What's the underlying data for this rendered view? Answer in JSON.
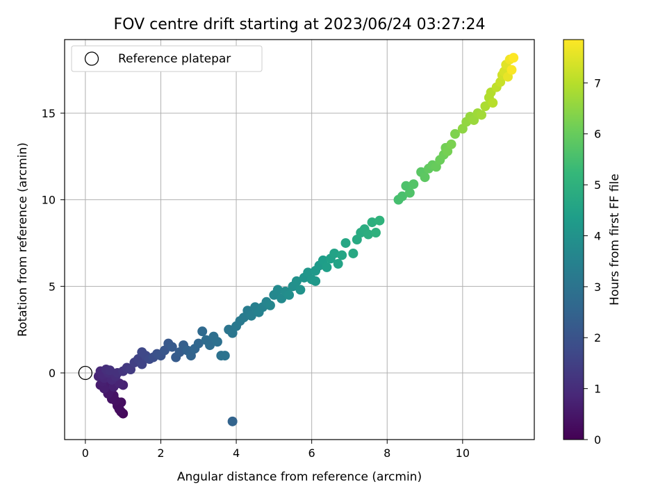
{
  "chart_data": {
    "type": "scatter",
    "title": "FOV centre drift starting at 2023/06/24 03:27:24",
    "xlabel": "Angular distance from reference (arcmin)",
    "ylabel": "Rotation from reference (arcmin)",
    "xlim": [
      -0.55,
      11.9
    ],
    "ylim": [
      -3.85,
      19.25
    ],
    "xticks": [
      0,
      2,
      4,
      6,
      8,
      10
    ],
    "yticks": [
      0,
      5,
      10,
      15
    ],
    "grid": true,
    "legend": {
      "placement": "upper-left",
      "entries": [
        {
          "label": "Reference platepar",
          "marker": "open-circle"
        }
      ]
    },
    "reference_point": {
      "x": 0,
      "y": 0
    },
    "colorbar": {
      "label": "Hours from first FF file",
      "range": [
        0,
        7.85
      ],
      "ticks": [
        0,
        1,
        2,
        3,
        4,
        5,
        6,
        7
      ],
      "colormap": "viridis"
    },
    "points": [
      {
        "x": 0.35,
        "y": -0.2,
        "c": 0.8
      },
      {
        "x": 0.4,
        "y": 0.1,
        "c": 0.9
      },
      {
        "x": 0.45,
        "y": -0.5,
        "c": 0.7
      },
      {
        "x": 0.5,
        "y": -0.3,
        "c": 0.85
      },
      {
        "x": 0.55,
        "y": -0.7,
        "c": 0.6
      },
      {
        "x": 0.6,
        "y": 0.0,
        "c": 1.0
      },
      {
        "x": 0.65,
        "y": -1.0,
        "c": 0.5
      },
      {
        "x": 0.7,
        "y": -0.4,
        "c": 0.9
      },
      {
        "x": 0.75,
        "y": -1.3,
        "c": 0.4
      },
      {
        "x": 0.8,
        "y": -1.6,
        "c": 0.35
      },
      {
        "x": 0.85,
        "y": -1.9,
        "c": 0.3
      },
      {
        "x": 0.9,
        "y": -2.1,
        "c": 0.25
      },
      {
        "x": 0.95,
        "y": -2.25,
        "c": 0.2
      },
      {
        "x": 1.0,
        "y": -2.35,
        "c": 0.15
      },
      {
        "x": 0.7,
        "y": -1.5,
        "c": 0.4
      },
      {
        "x": 0.6,
        "y": -1.2,
        "c": 0.5
      },
      {
        "x": 0.5,
        "y": -0.9,
        "c": 0.65
      },
      {
        "x": 0.45,
        "y": -0.1,
        "c": 0.9
      },
      {
        "x": 0.55,
        "y": 0.2,
        "c": 1.05
      },
      {
        "x": 0.65,
        "y": 0.15,
        "c": 1.1
      },
      {
        "x": 0.8,
        "y": -0.2,
        "c": 1.0
      },
      {
        "x": 0.9,
        "y": -0.6,
        "c": 0.8
      },
      {
        "x": 1.0,
        "y": -0.7,
        "c": 0.75
      },
      {
        "x": 0.95,
        "y": -1.7,
        "c": 0.3
      },
      {
        "x": 0.75,
        "y": -0.8,
        "c": 0.7
      },
      {
        "x": 0.4,
        "y": -0.7,
        "c": 0.6
      },
      {
        "x": 0.85,
        "y": 0.0,
        "c": 1.1
      },
      {
        "x": 1.0,
        "y": 0.1,
        "c": 1.2
      },
      {
        "x": 1.1,
        "y": 0.3,
        "c": 1.3
      },
      {
        "x": 1.2,
        "y": 0.2,
        "c": 1.35
      },
      {
        "x": 1.3,
        "y": 0.6,
        "c": 1.45
      },
      {
        "x": 1.4,
        "y": 0.8,
        "c": 1.55
      },
      {
        "x": 1.5,
        "y": 0.5,
        "c": 1.6
      },
      {
        "x": 1.6,
        "y": 1.0,
        "c": 1.7
      },
      {
        "x": 1.7,
        "y": 0.8,
        "c": 1.75
      },
      {
        "x": 1.5,
        "y": 1.2,
        "c": 1.7
      },
      {
        "x": 1.8,
        "y": 0.9,
        "c": 1.85
      },
      {
        "x": 1.9,
        "y": 1.1,
        "c": 1.95
      },
      {
        "x": 2.0,
        "y": 1.0,
        "c": 2.0
      },
      {
        "x": 2.1,
        "y": 1.3,
        "c": 2.1
      },
      {
        "x": 2.2,
        "y": 1.7,
        "c": 2.15
      },
      {
        "x": 2.3,
        "y": 1.5,
        "c": 2.2
      },
      {
        "x": 2.4,
        "y": 0.9,
        "c": 2.25
      },
      {
        "x": 2.5,
        "y": 1.2,
        "c": 2.3
      },
      {
        "x": 2.6,
        "y": 1.6,
        "c": 2.35
      },
      {
        "x": 2.7,
        "y": 1.3,
        "c": 2.45
      },
      {
        "x": 2.8,
        "y": 1.0,
        "c": 2.5
      },
      {
        "x": 2.9,
        "y": 1.4,
        "c": 2.55
      },
      {
        "x": 3.0,
        "y": 1.7,
        "c": 2.6
      },
      {
        "x": 3.1,
        "y": 2.4,
        "c": 2.7
      },
      {
        "x": 3.2,
        "y": 1.9,
        "c": 2.75
      },
      {
        "x": 3.3,
        "y": 1.6,
        "c": 2.8
      },
      {
        "x": 3.4,
        "y": 2.1,
        "c": 2.85
      },
      {
        "x": 3.5,
        "y": 1.8,
        "c": 2.9
      },
      {
        "x": 3.6,
        "y": 1.0,
        "c": 2.95
      },
      {
        "x": 3.7,
        "y": 1.0,
        "c": 3.0
      },
      {
        "x": 3.8,
        "y": 2.5,
        "c": 3.05
      },
      {
        "x": 3.9,
        "y": 2.3,
        "c": 3.1
      },
      {
        "x": 3.9,
        "y": -2.8,
        "c": 2.5
      },
      {
        "x": 4.0,
        "y": 2.7,
        "c": 3.15
      },
      {
        "x": 4.1,
        "y": 3.0,
        "c": 3.2
      },
      {
        "x": 4.2,
        "y": 3.2,
        "c": 3.25
      },
      {
        "x": 4.3,
        "y": 3.6,
        "c": 3.3
      },
      {
        "x": 4.4,
        "y": 3.3,
        "c": 3.35
      },
      {
        "x": 4.5,
        "y": 3.8,
        "c": 3.4
      },
      {
        "x": 4.6,
        "y": 3.5,
        "c": 3.45
      },
      {
        "x": 4.7,
        "y": 3.8,
        "c": 3.5
      },
      {
        "x": 4.8,
        "y": 4.1,
        "c": 3.55
      },
      {
        "x": 4.9,
        "y": 3.9,
        "c": 3.6
      },
      {
        "x": 5.0,
        "y": 4.5,
        "c": 3.65
      },
      {
        "x": 5.1,
        "y": 4.8,
        "c": 3.7
      },
      {
        "x": 5.2,
        "y": 4.3,
        "c": 3.75
      },
      {
        "x": 5.3,
        "y": 4.7,
        "c": 3.8
      },
      {
        "x": 5.4,
        "y": 4.5,
        "c": 3.85
      },
      {
        "x": 5.5,
        "y": 5.0,
        "c": 3.9
      },
      {
        "x": 5.6,
        "y": 5.3,
        "c": 3.95
      },
      {
        "x": 5.7,
        "y": 4.8,
        "c": 4.0
      },
      {
        "x": 5.8,
        "y": 5.5,
        "c": 4.05
      },
      {
        "x": 5.9,
        "y": 5.8,
        "c": 4.1
      },
      {
        "x": 6.0,
        "y": 5.4,
        "c": 4.15
      },
      {
        "x": 6.1,
        "y": 5.9,
        "c": 4.2
      },
      {
        "x": 6.2,
        "y": 6.2,
        "c": 4.25
      },
      {
        "x": 6.1,
        "y": 5.3,
        "c": 4.2
      },
      {
        "x": 6.3,
        "y": 6.5,
        "c": 4.35
      },
      {
        "x": 6.4,
        "y": 6.1,
        "c": 4.4
      },
      {
        "x": 6.5,
        "y": 6.6,
        "c": 4.45
      },
      {
        "x": 6.6,
        "y": 6.9,
        "c": 4.5
      },
      {
        "x": 6.7,
        "y": 6.3,
        "c": 4.55
      },
      {
        "x": 6.8,
        "y": 6.8,
        "c": 4.6
      },
      {
        "x": 6.9,
        "y": 7.5,
        "c": 4.65
      },
      {
        "x": 7.1,
        "y": 6.9,
        "c": 4.7
      },
      {
        "x": 7.2,
        "y": 7.7,
        "c": 4.75
      },
      {
        "x": 7.3,
        "y": 8.1,
        "c": 4.8
      },
      {
        "x": 7.4,
        "y": 8.3,
        "c": 4.85
      },
      {
        "x": 7.5,
        "y": 8.0,
        "c": 4.9
      },
      {
        "x": 7.6,
        "y": 8.7,
        "c": 4.95
      },
      {
        "x": 7.7,
        "y": 8.1,
        "c": 5.0
      },
      {
        "x": 7.8,
        "y": 8.8,
        "c": 5.05
      },
      {
        "x": 8.3,
        "y": 10.0,
        "c": 5.5
      },
      {
        "x": 8.4,
        "y": 10.2,
        "c": 5.55
      },
      {
        "x": 8.5,
        "y": 10.8,
        "c": 5.6
      },
      {
        "x": 8.6,
        "y": 10.4,
        "c": 5.65
      },
      {
        "x": 8.7,
        "y": 10.9,
        "c": 5.7
      },
      {
        "x": 8.9,
        "y": 11.6,
        "c": 5.8
      },
      {
        "x": 9.0,
        "y": 11.3,
        "c": 5.85
      },
      {
        "x": 9.1,
        "y": 11.8,
        "c": 5.9
      },
      {
        "x": 9.2,
        "y": 12.0,
        "c": 5.95
      },
      {
        "x": 9.3,
        "y": 11.9,
        "c": 6.0
      },
      {
        "x": 9.4,
        "y": 12.3,
        "c": 6.05
      },
      {
        "x": 9.5,
        "y": 12.6,
        "c": 6.1
      },
      {
        "x": 9.55,
        "y": 13.0,
        "c": 6.15
      },
      {
        "x": 9.6,
        "y": 12.8,
        "c": 6.2
      },
      {
        "x": 9.7,
        "y": 13.2,
        "c": 6.25
      },
      {
        "x": 9.8,
        "y": 13.8,
        "c": 6.3
      },
      {
        "x": 10.0,
        "y": 14.1,
        "c": 6.5
      },
      {
        "x": 10.1,
        "y": 14.5,
        "c": 6.55
      },
      {
        "x": 10.2,
        "y": 14.8,
        "c": 6.6
      },
      {
        "x": 10.3,
        "y": 14.6,
        "c": 6.65
      },
      {
        "x": 10.4,
        "y": 15.0,
        "c": 6.7
      },
      {
        "x": 10.5,
        "y": 14.9,
        "c": 6.75
      },
      {
        "x": 10.6,
        "y": 15.4,
        "c": 6.85
      },
      {
        "x": 10.7,
        "y": 15.9,
        "c": 6.9
      },
      {
        "x": 10.75,
        "y": 16.2,
        "c": 6.95
      },
      {
        "x": 10.8,
        "y": 15.6,
        "c": 7.0
      },
      {
        "x": 10.9,
        "y": 16.5,
        "c": 7.1
      },
      {
        "x": 11.0,
        "y": 16.8,
        "c": 7.2
      },
      {
        "x": 11.05,
        "y": 17.2,
        "c": 7.3
      },
      {
        "x": 11.1,
        "y": 17.4,
        "c": 7.4
      },
      {
        "x": 11.15,
        "y": 17.8,
        "c": 7.5
      },
      {
        "x": 11.2,
        "y": 17.1,
        "c": 7.6
      },
      {
        "x": 11.25,
        "y": 18.1,
        "c": 7.7
      },
      {
        "x": 11.3,
        "y": 17.5,
        "c": 7.8
      },
      {
        "x": 11.35,
        "y": 18.2,
        "c": 7.85
      }
    ]
  }
}
